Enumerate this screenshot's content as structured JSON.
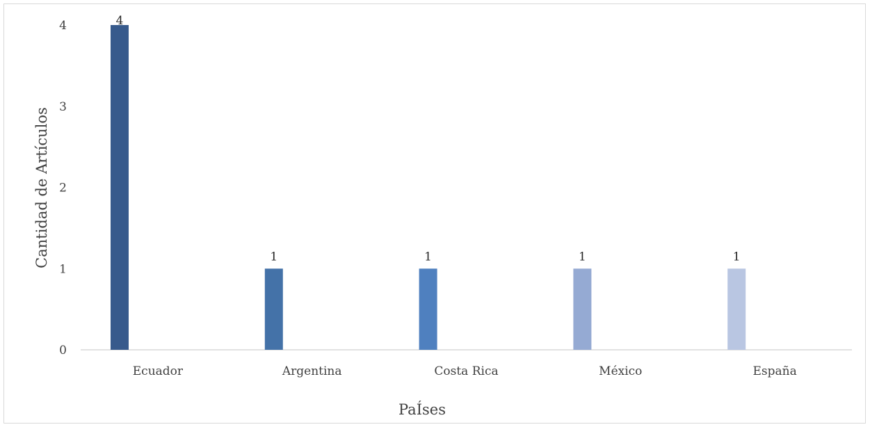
{
  "chart_data": {
    "type": "bar",
    "title": "",
    "xlabel": "PaÍses",
    "ylabel": "Cantidad de Artículos",
    "categories": [
      "Ecuador",
      "Argentina",
      "Costa Rica",
      "México",
      "España"
    ],
    "values": [
      4,
      1,
      1,
      1,
      1
    ],
    "value_labels": [
      "4",
      "1",
      "1",
      "1",
      "1"
    ],
    "ylim": [
      0,
      4
    ],
    "yticks": [
      "0",
      "1",
      "2",
      "3",
      "4"
    ],
    "grid": false,
    "legend": "none",
    "bar_colors": [
      "#375a8c",
      "#4472a8",
      "#4f80bf",
      "#95aad3",
      "#b9c6e2"
    ],
    "axis_color": "#d9d9d9"
  }
}
